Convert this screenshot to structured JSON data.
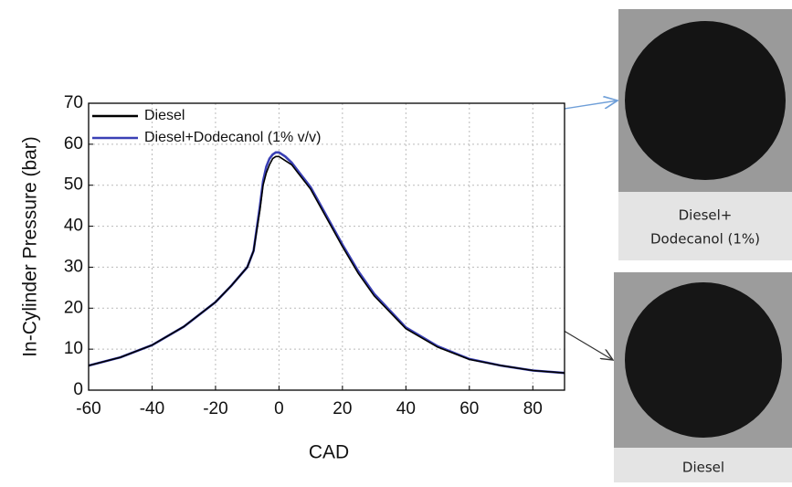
{
  "chart_data": {
    "type": "line",
    "x_label": "CAD",
    "y_label": "In-Cylinder Pressure (bar)",
    "x": [
      -60,
      -50,
      -40,
      -30,
      -20,
      -15,
      -10,
      -8,
      -6,
      -5,
      -4,
      -3,
      -2,
      -1,
      0,
      2,
      4,
      6,
      8,
      10,
      15,
      20,
      25,
      30,
      40,
      50,
      60,
      70,
      80,
      90
    ],
    "series": [
      {
        "name": "Diesel",
        "color": "#000000",
        "values": [
          6,
          8,
          11,
          15.5,
          21.5,
          25.5,
          30,
          34,
          44,
          50,
          53,
          55,
          56.5,
          57,
          57,
          56,
          55,
          53,
          51,
          49,
          42,
          35,
          28.5,
          23,
          15,
          10.5,
          7.5,
          6,
          4.8,
          4.2
        ]
      },
      {
        "name": "Diesel+Dodecanol (1% v/v)",
        "color": "#3a40b5",
        "values": [
          6,
          8,
          11,
          15.5,
          21.5,
          25.5,
          30,
          34,
          45,
          51,
          54.5,
          56.5,
          57.5,
          58,
          58,
          57,
          55.5,
          53.5,
          51.5,
          49.5,
          42.5,
          35.5,
          29,
          23.5,
          15.3,
          10.7,
          7.6,
          6,
          4.8,
          4.2
        ]
      }
    ],
    "xlim": [
      -60,
      90
    ],
    "xticks": [
      -60,
      -40,
      -20,
      0,
      20,
      40,
      60,
      80
    ],
    "ylim": [
      0,
      70
    ],
    "yticks": [
      0,
      10,
      20,
      30,
      40,
      50,
      60,
      70
    ],
    "grid": true,
    "legend": "upper-left"
  },
  "samples": [
    {
      "label_lines": [
        "Diesel+",
        "Dodecanol (1%)"
      ]
    },
    {
      "label_lines": [
        "Diesel"
      ]
    }
  ]
}
